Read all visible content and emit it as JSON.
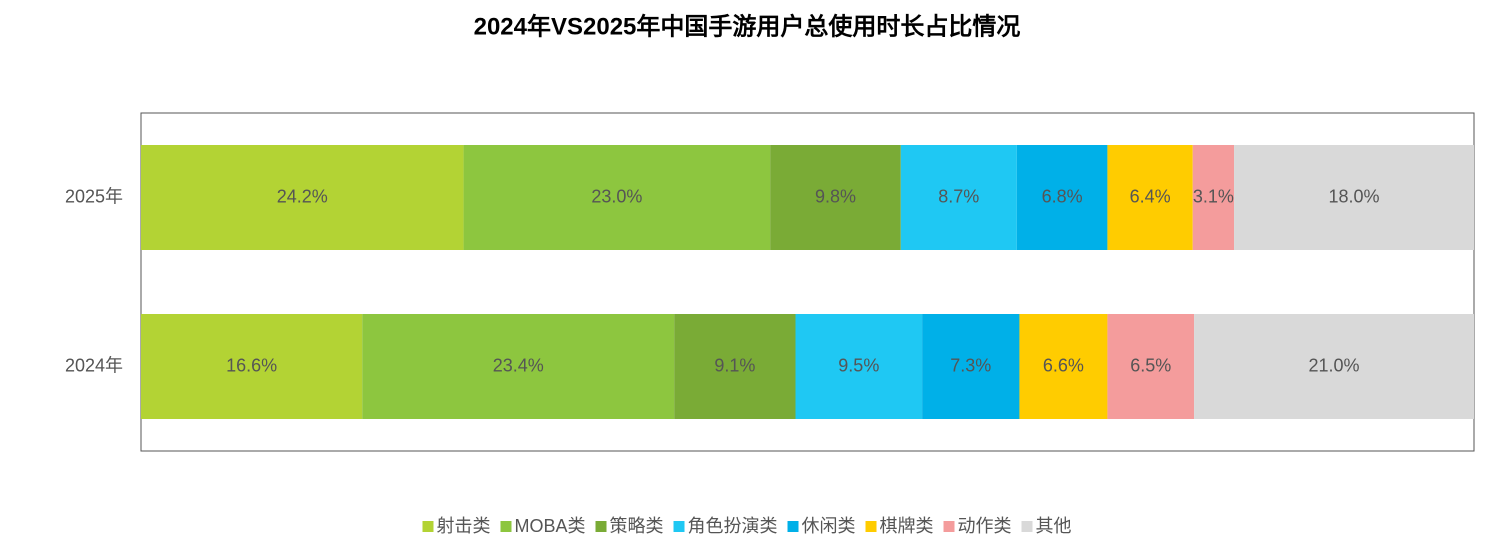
{
  "chart_data": {
    "type": "stacked-bar-horizontal",
    "title": "2024年VS2025年中国手游用户总使用时长占比情况",
    "categories": [
      "2025年",
      "2024年"
    ],
    "series": [
      {
        "name": "射击类",
        "color": "#b3d334",
        "values": [
          24.2,
          16.6
        ],
        "value_labels": [
          "24.2%",
          "16.6%"
        ]
      },
      {
        "name": "MOBA类",
        "color": "#8dc63f",
        "values": [
          23.0,
          23.4
        ],
        "value_labels": [
          "23.0%",
          "23.4%"
        ]
      },
      {
        "name": "策略类",
        "color": "#7aab36",
        "values": [
          9.8,
          9.1
        ],
        "value_labels": [
          "9.8%",
          "9.1%"
        ]
      },
      {
        "name": "角色扮演类",
        "color": "#1fc8f3",
        "values": [
          8.7,
          9.5
        ],
        "value_labels": [
          "8.7%",
          "9.5%"
        ]
      },
      {
        "name": "休闲类",
        "color": "#00b0e8",
        "values": [
          6.8,
          7.3
        ],
        "value_labels": [
          "6.8%",
          "7.3%"
        ]
      },
      {
        "name": "棋牌类",
        "color": "#ffcc00",
        "values": [
          6.4,
          6.6
        ],
        "value_labels": [
          "6.4%",
          "6.6%"
        ]
      },
      {
        "name": "动作类",
        "color": "#f49c9c",
        "values": [
          3.1,
          6.5
        ],
        "value_labels": [
          "3.1%",
          "6.5%"
        ]
      },
      {
        "name": "其他",
        "color": "#d9d9d9",
        "values": [
          18.0,
          21.0
        ],
        "value_labels": [
          "18.0%",
          "21.0%"
        ]
      }
    ],
    "legend": "bottom"
  }
}
